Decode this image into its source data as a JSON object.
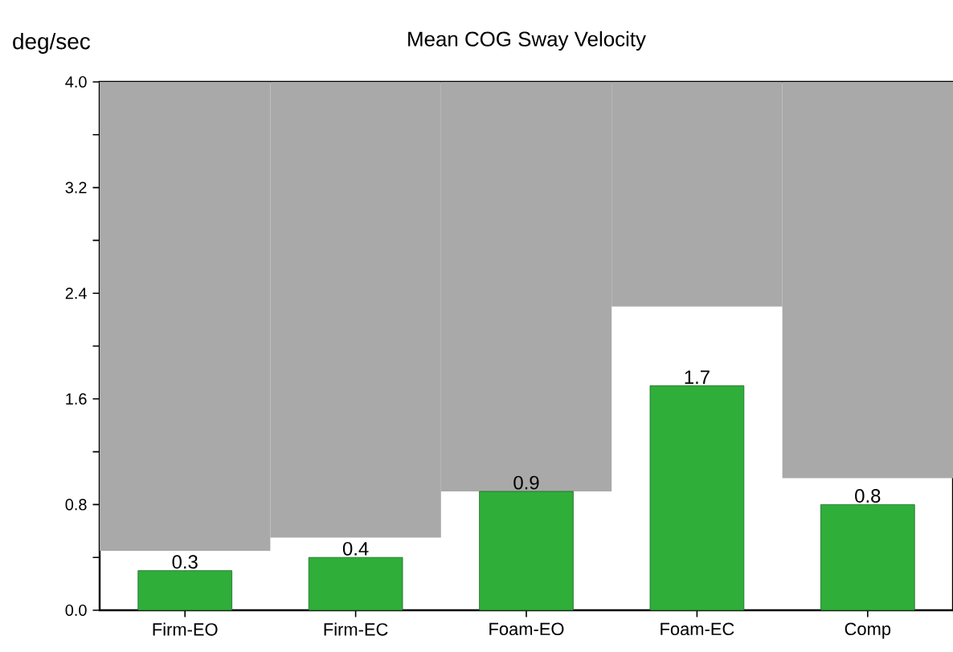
{
  "chart_data": {
    "type": "bar",
    "title": "Mean COG Sway Velocity",
    "ylabel": "deg/sec",
    "categories": [
      "Firm-EO",
      "Firm-EC",
      "Foam-EO",
      "Foam-EC",
      "Comp"
    ],
    "series": [
      {
        "color": "#a9a9a9",
        "base": [
          0.45,
          0.55,
          0.9,
          2.3,
          1.0
        ],
        "values": [
          3.55,
          3.45,
          3.1,
          1.7,
          3.0
        ]
      },
      {
        "color": "#2fae3a",
        "values": [
          0.3,
          0.4,
          0.9,
          1.7,
          0.8
        ],
        "value_labels": [
          "0.3",
          "0.4",
          "0.9",
          "1.7",
          "0.8"
        ]
      }
    ],
    "ylim": [
      0,
      4.0
    ],
    "yticks": [
      {
        "value": 0,
        "label": "0.0"
      },
      {
        "value": 0.4,
        "label": null
      },
      0.8,
      {
        "value": 1.2,
        "label": null
      },
      1.6,
      {
        "value": 2.0,
        "label": null
      },
      2.4,
      {
        "value": 2.8,
        "label": null
      },
      3.2,
      {
        "value": 3.6,
        "label": null
      },
      {
        "value": 4,
        "label": "4.0"
      }
    ]
  }
}
